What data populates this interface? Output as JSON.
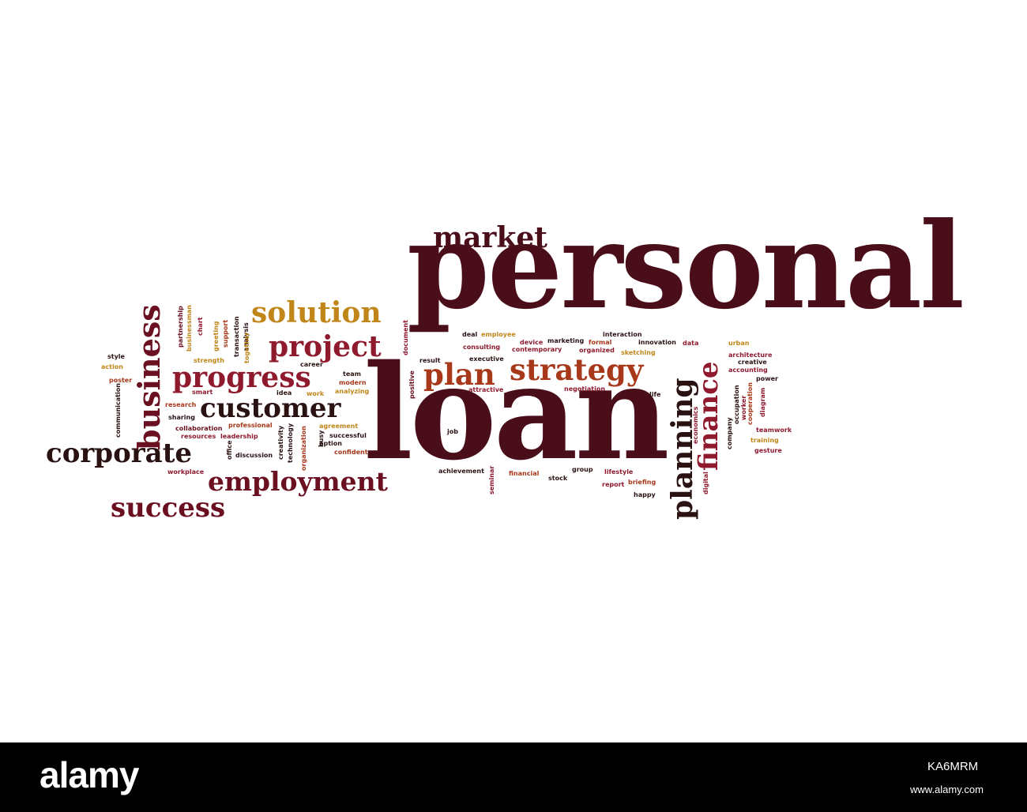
{
  "words": {
    "personal": "personal",
    "loan": "loan",
    "market": "market",
    "solution": "solution",
    "project": "project",
    "progress": "progress",
    "customer": "customer",
    "corporate": "corporate",
    "employment": "employment",
    "success": "success",
    "business": "business",
    "plan": "plan",
    "strategy": "strategy",
    "planning": "planning",
    "finance": "finance",
    "style": "style",
    "action": "action",
    "poster": "poster",
    "communication": "communication",
    "partnership": "partnership",
    "businessman": "businessman",
    "chart": "chart",
    "greeting": "greeting",
    "support": "support",
    "transaction": "transaction",
    "analysis": "analysis",
    "together": "together",
    "strength": "strength",
    "smart": "smart",
    "research": "research",
    "sharing": "sharing",
    "collaboration": "collaboration",
    "resources": "resources",
    "leadership": "leadership",
    "professional": "professional",
    "office": "office",
    "discussion": "discussion",
    "workplace": "workplace",
    "career": "career",
    "idea": "idea",
    "work": "work",
    "creativity": "creativity",
    "technology": "technology",
    "organization": "organization",
    "busy": "busy",
    "team": "team",
    "modern": "modern",
    "analyzing": "analyzing",
    "agreement": "agreement",
    "successful": "successful",
    "option": "option",
    "confident": "confident",
    "document": "document",
    "result": "result",
    "positive": "positive",
    "job": "job",
    "seminar": "seminar",
    "achievement": "achievement",
    "deal": "deal",
    "employee": "employee",
    "consulting": "consulting",
    "executive": "executive",
    "attractive": "attractive",
    "financial": "financial",
    "device": "device",
    "marketing": "marketing",
    "contemporary": "contemporary",
    "interaction": "interaction",
    "formal": "formal",
    "organized": "organized",
    "innovation": "innovation",
    "sketching": "sketching",
    "negotiation": "negotiation",
    "life": "life",
    "stock": "stock",
    "group": "group",
    "lifestyle": "lifestyle",
    "report": "report",
    "briefing": "briefing",
    "happy": "happy",
    "data": "data",
    "urban": "urban",
    "architecture": "architecture",
    "creative": "creative",
    "accounting": "accounting",
    "power": "power",
    "economics": "economics",
    "company": "company",
    "occupation": "occupation",
    "worker": "worker",
    "cooperation": "cooperation",
    "diagram": "diagram",
    "teamwork": "teamwork",
    "training": "training",
    "gesture": "gesture",
    "digital": "digital"
  },
  "footer": {
    "logo": "alamy",
    "image_id": "KA6MRM",
    "url": "www.alamy.com"
  },
  "colors": {
    "dark_maroon": "#4a0e1a",
    "crimson": "#8f1a2e",
    "gold": "#c0861a",
    "near_black": "#2a1212",
    "rust": "#a8381a"
  }
}
